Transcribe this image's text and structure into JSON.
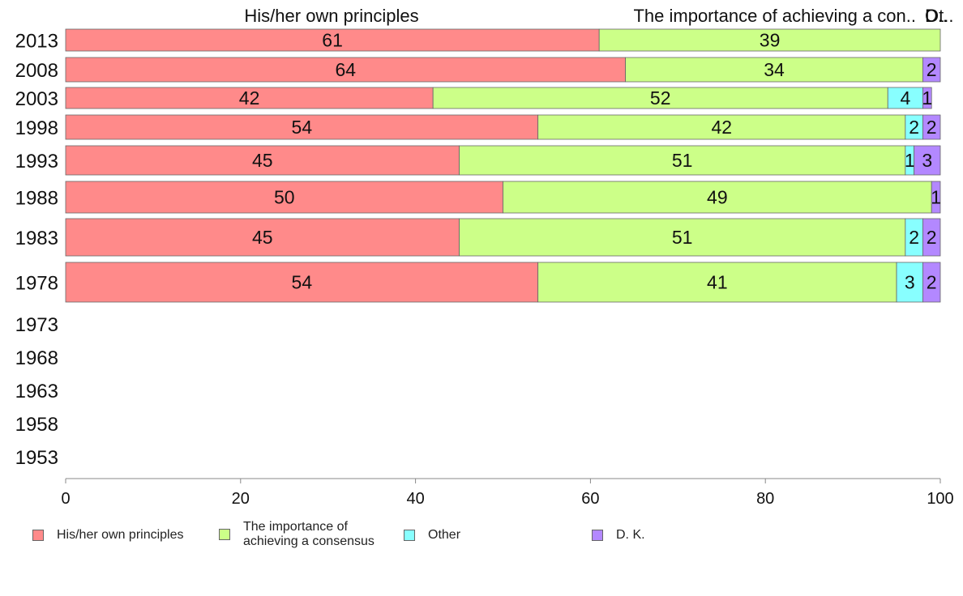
{
  "chart_data": {
    "type": "bar",
    "orientation": "horizontal",
    "stacked": true,
    "categories": [
      "2013",
      "2008",
      "2003",
      "1998",
      "1993",
      "1988",
      "1983",
      "1978",
      "1973",
      "1968",
      "1963",
      "1958",
      "1953"
    ],
    "series": [
      {
        "name": "His/her own principles",
        "color": "#ff8a8a",
        "values": [
          61,
          64,
          42,
          54,
          45,
          50,
          45,
          54,
          null,
          null,
          null,
          null,
          null
        ]
      },
      {
        "name": "The importance of achieving a consensus",
        "color": "#ccff88",
        "values": [
          39,
          34,
          52,
          42,
          51,
          49,
          51,
          41,
          null,
          null,
          null,
          null,
          null
        ]
      },
      {
        "name": "Other",
        "color": "#88ffff",
        "values": [
          0,
          0,
          4,
          2,
          1,
          0,
          2,
          3,
          null,
          null,
          null,
          null,
          null
        ]
      },
      {
        "name": "D. K.",
        "color": "#b388ff",
        "values": [
          0,
          2,
          1,
          2,
          3,
          1,
          2,
          2,
          null,
          null,
          null,
          null,
          null
        ]
      }
    ],
    "xlim": [
      0,
      100
    ],
    "xticks": [
      0,
      20,
      40,
      60,
      80,
      100
    ],
    "header_labels": [
      "His/her own principles",
      "The importance of achieving a con..",
      "D..",
      "Ot.."
    ],
    "legend": {
      "position": "bottom",
      "items": [
        {
          "label": "His/her own principles",
          "color": "#ff8a8a"
        },
        {
          "label": "The importance of\nachieving a consensus",
          "color": "#ccff88"
        },
        {
          "label": "Other",
          "color": "#88ffff"
        },
        {
          "label": "D. K.",
          "color": "#b388ff"
        }
      ]
    }
  }
}
